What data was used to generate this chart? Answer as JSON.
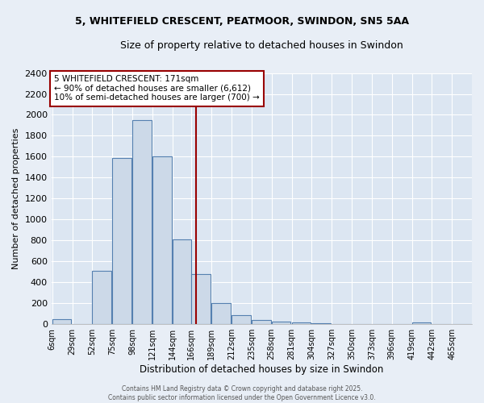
{
  "title1": "5, WHITEFIELD CRESCENT, PEATMOOR, SWINDON, SN5 5AA",
  "title2": "Size of property relative to detached houses in Swindon",
  "xlabel": "Distribution of detached houses by size in Swindon",
  "ylabel": "Number of detached properties",
  "bin_labels": [
    "6sqm",
    "29sqm",
    "52sqm",
    "75sqm",
    "98sqm",
    "121sqm",
    "144sqm",
    "166sqm",
    "189sqm",
    "212sqm",
    "235sqm",
    "258sqm",
    "281sqm",
    "304sqm",
    "327sqm",
    "350sqm",
    "373sqm",
    "396sqm",
    "419sqm",
    "442sqm",
    "465sqm"
  ],
  "bar_values": [
    50,
    0,
    510,
    1590,
    1950,
    1600,
    810,
    480,
    200,
    85,
    40,
    25,
    15,
    10,
    5,
    0,
    0,
    0,
    15,
    0,
    0
  ],
  "bar_color": "#ccd9e8",
  "bar_edge_color": "#5580b0",
  "vline_x_label": "166sqm",
  "vline_color": "#990000",
  "ylim": [
    0,
    2400
  ],
  "yticks": [
    0,
    200,
    400,
    600,
    800,
    1000,
    1200,
    1400,
    1600,
    1800,
    2000,
    2200,
    2400
  ],
  "annotation_title": "5 WHITEFIELD CRESCENT: 171sqm",
  "annotation_line1": "← 90% of detached houses are smaller (6,612)",
  "annotation_line2": "10% of semi-detached houses are larger (700) →",
  "annotation_box_color": "#ffffff",
  "annotation_box_edge": "#990000",
  "footer": "Contains HM Land Registry data © Crown copyright and database right 2025.\nContains public sector information licensed under the Open Government Licence v3.0.",
  "bg_color": "#e8eef6",
  "plot_bg_color": "#dce6f2",
  "grid_color": "#ffffff",
  "bin_width": 23
}
